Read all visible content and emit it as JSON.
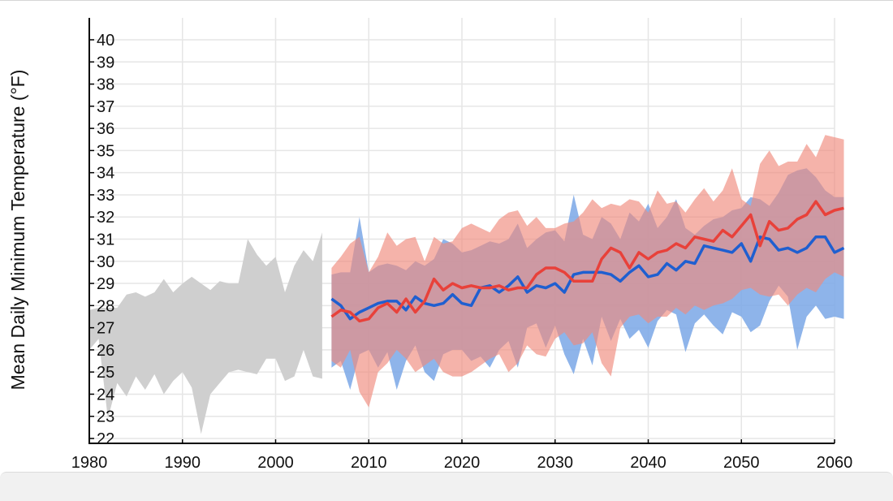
{
  "chart_data": {
    "type": "area",
    "title": "",
    "xlabel": "",
    "ylabel": "Mean Daily Minimum Temperature (°F)",
    "xlim": [
      1980,
      2060
    ],
    "ylim": [
      22,
      40
    ],
    "x_ticks": [
      1980,
      1990,
      2000,
      2010,
      2020,
      2030,
      2040,
      2050,
      2060
    ],
    "y_ticks": [
      22,
      23,
      24,
      25,
      26,
      27,
      28,
      29,
      30,
      31,
      32,
      33,
      34,
      35,
      36,
      37,
      38,
      39,
      40
    ],
    "grid": true,
    "legend": "none",
    "colors": {
      "observed_band": "#cfcfcf",
      "lower_band": "#7aa7e6",
      "higher_band": "#f08a7d",
      "lower_line": "#1f5fd0",
      "higher_line": "#e8413a",
      "grid": "#e6e6e6",
      "axis": "#000000"
    },
    "series": [
      {
        "kind": "band",
        "x": [
          1980,
          1981,
          1982,
          1983,
          1984,
          1985,
          1986,
          1987,
          1988,
          1989,
          1990,
          1991,
          1992,
          1993,
          1994,
          1995,
          1996,
          1997,
          1998,
          1999,
          2000,
          2001,
          2002,
          2003,
          2004,
          2005
        ],
        "upper": [
          27.8,
          27.9,
          27.9,
          27.9,
          28.5,
          28.6,
          28.4,
          28.6,
          29.2,
          28.6,
          29.0,
          29.3,
          29.0,
          28.7,
          29.1,
          29.0,
          29.0,
          31.0,
          30.3,
          29.8,
          30.2,
          28.6,
          29.8,
          30.5,
          30.0,
          31.3
        ],
        "lower": [
          26.0,
          26.5,
          22.9,
          24.5,
          23.9,
          24.8,
          24.2,
          24.9,
          24.0,
          24.6,
          25.0,
          24.3,
          22.2,
          24.0,
          24.5,
          25.0,
          25.1,
          25.0,
          24.9,
          25.6,
          25.6,
          24.6,
          24.8,
          26.0,
          24.8,
          24.7
        ]
      },
      {
        "kind": "band",
        "x": [
          2006,
          2007,
          2008,
          2009,
          2010,
          2011,
          2012,
          2013,
          2014,
          2015,
          2016,
          2017,
          2018,
          2019,
          2020,
          2021,
          2022,
          2023,
          2024,
          2025,
          2026,
          2027,
          2028,
          2029,
          2030,
          2031,
          2032,
          2033,
          2034,
          2035,
          2036,
          2037,
          2038,
          2039,
          2040,
          2041,
          2042,
          2043,
          2044,
          2045,
          2046,
          2047,
          2048,
          2049,
          2050,
          2051,
          2052,
          2053,
          2054,
          2055,
          2056,
          2057,
          2058,
          2059,
          2060,
          2061
        ],
        "upper": [
          29.4,
          29.5,
          29.5,
          32.0,
          29.5,
          29.8,
          29.9,
          29.8,
          29.6,
          30.0,
          29.8,
          30.1,
          31.0,
          30.8,
          30.4,
          30.5,
          30.7,
          30.9,
          30.8,
          31.0,
          31.7,
          30.6,
          31.0,
          31.3,
          31.4,
          30.9,
          33.0,
          31.2,
          31.0,
          32.0,
          31.7,
          31.0,
          32.2,
          31.8,
          32.6,
          31.5,
          32.0,
          32.8,
          31.5,
          31.2,
          31.6,
          31.9,
          32.0,
          32.3,
          32.4,
          32.9,
          32.8,
          32.5,
          33.1,
          33.9,
          34.1,
          34.2,
          33.8,
          33.2,
          32.9,
          32.9
        ],
        "lower": [
          25.2,
          25.5,
          24.2,
          25.8,
          26.0,
          25.2,
          25.9,
          24.2,
          25.5,
          26.2,
          25.0,
          24.6,
          25.8,
          26.0,
          26.0,
          25.5,
          25.7,
          25.2,
          26.0,
          26.4,
          25.2,
          27.0,
          27.2,
          26.1,
          27.1,
          25.8,
          24.9,
          26.5,
          25.3,
          27.5,
          26.4,
          27.4,
          26.5,
          26.9,
          26.1,
          27.3,
          27.8,
          27.6,
          25.9,
          27.2,
          27.6,
          27.1,
          26.7,
          27.7,
          27.5,
          26.8,
          27.1,
          28.2,
          28.9,
          28.4,
          26.0,
          27.5,
          28.0,
          27.4,
          27.5,
          27.4
        ]
      },
      {
        "kind": "band",
        "x": [
          2006,
          2007,
          2008,
          2009,
          2010,
          2011,
          2012,
          2013,
          2014,
          2015,
          2016,
          2017,
          2018,
          2019,
          2020,
          2021,
          2022,
          2023,
          2024,
          2025,
          2026,
          2027,
          2028,
          2029,
          2030,
          2031,
          2032,
          2033,
          2034,
          2035,
          2036,
          2037,
          2038,
          2039,
          2040,
          2041,
          2042,
          2043,
          2044,
          2045,
          2046,
          2047,
          2048,
          2049,
          2050,
          2051,
          2052,
          2053,
          2054,
          2055,
          2056,
          2057,
          2058,
          2059,
          2060,
          2061
        ],
        "upper": [
          29.7,
          30.2,
          30.8,
          31.1,
          29.5,
          30.2,
          31.3,
          30.7,
          31.0,
          31.1,
          30.0,
          31.1,
          30.8,
          30.9,
          31.5,
          31.7,
          31.5,
          31.3,
          31.9,
          32.2,
          32.3,
          31.6,
          32.0,
          31.5,
          31.5,
          31.7,
          31.8,
          32.2,
          32.8,
          32.4,
          32.6,
          32.5,
          32.8,
          32.7,
          32.2,
          33.2,
          32.6,
          32.7,
          32.2,
          32.8,
          33.3,
          32.7,
          33.2,
          34.2,
          32.8,
          32.5,
          34.4,
          35.0,
          34.3,
          34.5,
          34.5,
          35.3,
          34.7,
          35.7,
          35.6,
          35.5
        ],
        "lower": [
          25.5,
          25.2,
          26.0,
          24.1,
          23.4,
          25.0,
          25.4,
          26.0,
          25.6,
          25.0,
          25.3,
          25.6,
          25.0,
          24.8,
          24.8,
          25.0,
          25.3,
          25.6,
          25.8,
          25.0,
          25.4,
          26.2,
          25.8,
          25.7,
          26.5,
          26.8,
          26.2,
          26.3,
          26.8,
          25.4,
          24.8,
          27.0,
          27.5,
          27.6,
          27.2,
          27.5,
          27.5,
          27.9,
          27.6,
          28.0,
          27.8,
          28.0,
          28.1,
          28.3,
          28.7,
          28.8,
          28.5,
          28.4,
          28.5,
          28.0,
          28.5,
          28.8,
          28.6,
          29.2,
          29.5,
          29.3
        ]
      },
      {
        "kind": "line",
        "x": [
          2006,
          2007,
          2008,
          2009,
          2010,
          2011,
          2012,
          2013,
          2014,
          2015,
          2016,
          2017,
          2018,
          2019,
          2020,
          2021,
          2022,
          2023,
          2024,
          2025,
          2026,
          2027,
          2028,
          2029,
          2030,
          2031,
          2032,
          2033,
          2034,
          2035,
          2036,
          2037,
          2038,
          2039,
          2040,
          2041,
          2042,
          2043,
          2044,
          2045,
          2046,
          2047,
          2048,
          2049,
          2050,
          2051,
          2052,
          2053,
          2054,
          2055,
          2056,
          2057,
          2058,
          2059,
          2060,
          2061
        ],
        "values": [
          28.3,
          28.0,
          27.4,
          27.7,
          27.9,
          28.1,
          28.2,
          28.2,
          27.8,
          28.4,
          28.1,
          28.0,
          28.1,
          28.5,
          28.1,
          28.0,
          28.8,
          28.9,
          28.6,
          28.9,
          29.3,
          28.6,
          28.9,
          28.8,
          29.0,
          28.6,
          29.4,
          29.5,
          29.5,
          29.5,
          29.4,
          29.1,
          29.5,
          29.8,
          29.3,
          29.4,
          29.9,
          29.6,
          30.0,
          29.9,
          30.7,
          30.6,
          30.5,
          30.4,
          30.8,
          30.0,
          31.1,
          31.0,
          30.5,
          30.6,
          30.4,
          30.6,
          31.1,
          31.1,
          30.4,
          30.6
        ]
      },
      {
        "kind": "line",
        "x": [
          2006,
          2007,
          2008,
          2009,
          2010,
          2011,
          2012,
          2013,
          2014,
          2015,
          2016,
          2017,
          2018,
          2019,
          2020,
          2021,
          2022,
          2023,
          2024,
          2025,
          2026,
          2027,
          2028,
          2029,
          2030,
          2031,
          2032,
          2033,
          2034,
          2035,
          2036,
          2037,
          2038,
          2039,
          2040,
          2041,
          2042,
          2043,
          2044,
          2045,
          2046,
          2047,
          2048,
          2049,
          2050,
          2051,
          2052,
          2053,
          2054,
          2055,
          2056,
          2057,
          2058,
          2059,
          2060,
          2061
        ],
        "values": [
          27.5,
          27.8,
          27.7,
          27.3,
          27.4,
          27.9,
          28.1,
          27.7,
          28.3,
          27.7,
          28.2,
          29.2,
          28.7,
          29.0,
          28.8,
          28.9,
          28.8,
          28.8,
          28.9,
          28.7,
          28.8,
          28.8,
          29.4,
          29.7,
          29.7,
          29.5,
          29.1,
          29.1,
          29.1,
          30.1,
          30.6,
          30.4,
          29.7,
          30.4,
          30.1,
          30.4,
          30.5,
          30.8,
          30.6,
          31.1,
          31.0,
          30.9,
          31.4,
          31.1,
          31.6,
          32.1,
          30.7,
          31.8,
          31.4,
          31.5,
          31.9,
          32.1,
          32.7,
          32.1,
          32.3,
          32.4
        ]
      }
    ]
  }
}
